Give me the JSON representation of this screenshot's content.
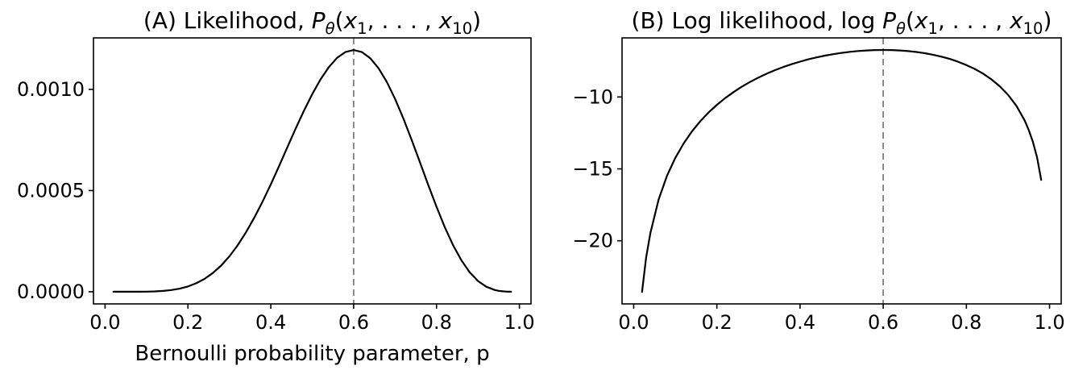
{
  "figure": {
    "background": "#ffffff",
    "curve_color": "#000000",
    "vline_color": "#7f7f7f"
  },
  "chart_data": [
    {
      "id": "A",
      "type": "line",
      "title": "(A) Likelihood, Pθ(x₁, . . . , x₁₀)",
      "title_parts": [
        {
          "t": "(A) Likelihood, "
        },
        {
          "t": "P",
          "i": 1
        },
        {
          "t": "θ",
          "i": 1,
          "sub": 1
        },
        {
          "t": "("
        },
        {
          "t": "x",
          "i": 1
        },
        {
          "t": "1",
          "sub": 1
        },
        {
          "t": ", . . . , "
        },
        {
          "t": "x",
          "i": 1
        },
        {
          "t": "10",
          "sub": 1
        },
        {
          "t": ")"
        }
      ],
      "xlabel": "Bernoulli probability parameter, p",
      "ylabel": "",
      "curve_name": "likelihood-curve",
      "line_color": "#000000",
      "grid": false,
      "legend": null,
      "xlim": [
        -0.028,
        1.028
      ],
      "ylim": [
        -6e-05,
        0.0012545
      ],
      "x_ticks": [
        0.0,
        0.2,
        0.4,
        0.6,
        0.8,
        1.0
      ],
      "x_tick_labels": [
        "0.0",
        "0.2",
        "0.4",
        "0.6",
        "0.8",
        "1.0"
      ],
      "y_ticks": [
        0.0,
        0.0005,
        0.001
      ],
      "y_tick_labels": [
        "0.0000",
        "0.0005",
        "0.0010"
      ],
      "vline": {
        "x": 0.6,
        "style": "dashed",
        "color": "#7f7f7f"
      },
      "x": [
        0.02,
        0.03,
        0.04,
        0.06,
        0.08,
        0.1,
        0.12,
        0.14,
        0.16,
        0.18,
        0.2,
        0.22,
        0.24,
        0.26,
        0.28,
        0.3,
        0.32,
        0.34,
        0.36,
        0.38,
        0.4,
        0.42,
        0.44,
        0.46,
        0.48,
        0.5,
        0.52,
        0.54,
        0.56,
        0.58,
        0.6,
        0.62,
        0.64,
        0.66,
        0.68,
        0.7,
        0.72,
        0.74,
        0.76,
        0.78,
        0.8,
        0.82,
        0.84,
        0.86,
        0.88,
        0.9,
        0.92,
        0.94,
        0.95,
        0.96,
        0.97,
        0.98
      ],
      "y": [
        5.9e-11,
        6.5e-10,
        3.5e-09,
        3.63e-08,
        1.87e-07,
        6.54e-07,
        1.79e-06,
        4.1e-06,
        8.33e-06,
        1.533e-05,
        2.614e-05,
        4.19e-05,
        6.36e-05,
        9.25e-05,
        0.0001294,
        0.000175,
        0.0002293,
        0.0002933,
        0.0003654,
        0.0004451,
        0.0005308,
        0.0006214,
        0.0007138,
        0.0008059,
        0.0008946,
        0.0009766,
        0.0010494,
        0.0011101,
        0.001156,
        0.0011845,
        0.0011944,
        0.0011843,
        0.0011543,
        0.0011045,
        0.0010367,
        0.000953,
        0.0008563,
        0.0007504,
        0.0006393,
        0.0005277,
        0.0004195,
        0.0003191,
        0.00023,
        0.0001553,
        9.63e-05,
        5.32e-05,
        2.48e-05,
        8.92e-06,
        4.59e-06,
        2e-06,
        6.75e-07,
        1.42e-07
      ],
      "peak": {
        "x": 0.6,
        "y": 0.0011944
      }
    },
    {
      "id": "B",
      "type": "line",
      "title": "(B) Log likelihood, log Pθ(x₁, . . . , x₁₀)",
      "title_parts": [
        {
          "t": "(B) Log likelihood, log "
        },
        {
          "t": "P",
          "i": 1
        },
        {
          "t": "θ",
          "i": 1,
          "sub": 1
        },
        {
          "t": "("
        },
        {
          "t": "x",
          "i": 1
        },
        {
          "t": "1",
          "sub": 1
        },
        {
          "t": ", . . . , "
        },
        {
          "t": "x",
          "i": 1
        },
        {
          "t": "10",
          "sub": 1
        },
        {
          "t": ")"
        }
      ],
      "xlabel": "",
      "ylabel": "",
      "curve_name": "log-likelihood-curve",
      "line_color": "#000000",
      "grid": false,
      "legend": null,
      "xlim": [
        -0.028,
        1.028
      ],
      "ylim": [
        -24.39,
        -5.89
      ],
      "x_ticks": [
        0.0,
        0.2,
        0.4,
        0.6,
        0.8,
        1.0
      ],
      "x_tick_labels": [
        "0.0",
        "0.2",
        "0.4",
        "0.6",
        "0.8",
        "1.0"
      ],
      "y_ticks": [
        -10,
        -15,
        -20
      ],
      "y_tick_labels": [
        "−10",
        "−15",
        "−20"
      ],
      "vline": {
        "x": 0.6,
        "style": "dashed",
        "color": "#7f7f7f"
      },
      "x": [
        0.02,
        0.03,
        0.04,
        0.06,
        0.08,
        0.1,
        0.12,
        0.14,
        0.16,
        0.18,
        0.2,
        0.22,
        0.24,
        0.26,
        0.28,
        0.3,
        0.32,
        0.34,
        0.36,
        0.38,
        0.4,
        0.42,
        0.44,
        0.46,
        0.48,
        0.5,
        0.52,
        0.54,
        0.56,
        0.58,
        0.6,
        0.62,
        0.64,
        0.66,
        0.68,
        0.7,
        0.72,
        0.74,
        0.76,
        0.78,
        0.8,
        0.82,
        0.84,
        0.86,
        0.88,
        0.9,
        0.92,
        0.94,
        0.95,
        0.96,
        0.97,
        0.98
      ],
      "y": [
        -23.553,
        -21.161,
        -19.477,
        -17.128,
        -15.488,
        -14.237,
        -13.233,
        -12.4,
        -11.693,
        -11.083,
        -10.549,
        -10.079,
        -9.661,
        -9.287,
        -8.952,
        -8.65,
        -8.379,
        -8.135,
        -7.915,
        -7.718,
        -7.541,
        -7.384,
        -7.245,
        -7.124,
        -7.02,
        -6.931,
        -6.859,
        -6.803,
        -6.763,
        -6.738,
        -6.73,
        -6.739,
        -6.764,
        -6.808,
        -6.872,
        -6.956,
        -7.063,
        -7.195,
        -7.355,
        -7.547,
        -7.777,
        -8.05,
        -8.376,
        -8.769,
        -9.248,
        -9.843,
        -10.603,
        -11.625,
        -12.291,
        -13.12,
        -14.209,
        -15.769
      ],
      "peak": {
        "x": 0.6,
        "y": -6.73
      }
    }
  ]
}
